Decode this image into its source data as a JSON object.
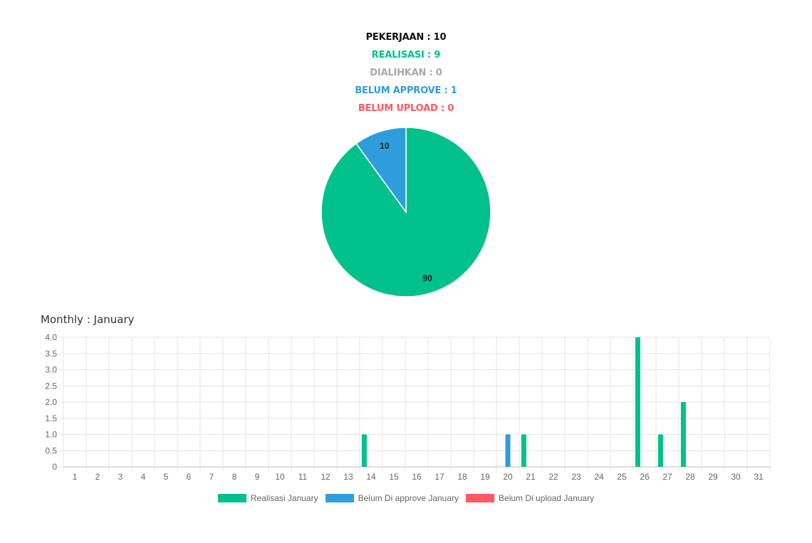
{
  "summary": {
    "pekerjaan": "PEKERJAAN : 10",
    "realisasi": "REALISASI : 9",
    "dialihkan": "DIALIHKAN : 0",
    "belum_approve": "BELUM APPROVE : 1",
    "belum_upload": "BELUM UPLOAD : 0"
  },
  "colors": {
    "pekerjaan": "#111111",
    "realisasi": "#00c08b",
    "dialihkan": "#a9a9a9",
    "belum_approve": "#2e9ddc",
    "belum_upload": "#ff5a5f",
    "grid": "#e6e6e6",
    "tick": "#666666"
  },
  "monthly_title": "Monthly : January",
  "chart_data": [
    {
      "type": "pie",
      "slices": [
        {
          "label": "90",
          "value": 90,
          "color": "#00c08b"
        },
        {
          "label": "10",
          "value": 10,
          "color": "#2e9ddc"
        }
      ]
    },
    {
      "type": "bar",
      "categories": [
        "1",
        "2",
        "3",
        "4",
        "5",
        "6",
        "7",
        "8",
        "9",
        "10",
        "11",
        "12",
        "13",
        "14",
        "15",
        "16",
        "17",
        "18",
        "19",
        "20",
        "21",
        "22",
        "23",
        "24",
        "25",
        "26",
        "27",
        "28",
        "29",
        "30",
        "31"
      ],
      "series": [
        {
          "name": "Realisasi January",
          "color": "#00c08b",
          "values": [
            0,
            0,
            0,
            0,
            0,
            0,
            0,
            0,
            0,
            0,
            0,
            0,
            0,
            1,
            0,
            0,
            0,
            0,
            0,
            0,
            1,
            0,
            0,
            0,
            0,
            4,
            1,
            2,
            0,
            0,
            0
          ]
        },
        {
          "name": "Belum Di approve January",
          "color": "#2e9ddc",
          "values": [
            0,
            0,
            0,
            0,
            0,
            0,
            0,
            0,
            0,
            0,
            0,
            0,
            0,
            0,
            0,
            0,
            0,
            0,
            0,
            1,
            0,
            0,
            0,
            0,
            0,
            0,
            0,
            0,
            0,
            0,
            0
          ]
        },
        {
          "name": "Belum Di upload January",
          "color": "#ff5a5f",
          "values": [
            0,
            0,
            0,
            0,
            0,
            0,
            0,
            0,
            0,
            0,
            0,
            0,
            0,
            0,
            0,
            0,
            0,
            0,
            0,
            0,
            0,
            0,
            0,
            0,
            0,
            0,
            0,
            0,
            0,
            0,
            0
          ]
        }
      ],
      "yticks": [
        "0",
        "0.5",
        "1.0",
        "1.5",
        "2.0",
        "2.5",
        "3.0",
        "3.5",
        "4.0"
      ],
      "ylim": [
        0,
        4
      ],
      "grid": true,
      "legend": "bottom"
    }
  ]
}
